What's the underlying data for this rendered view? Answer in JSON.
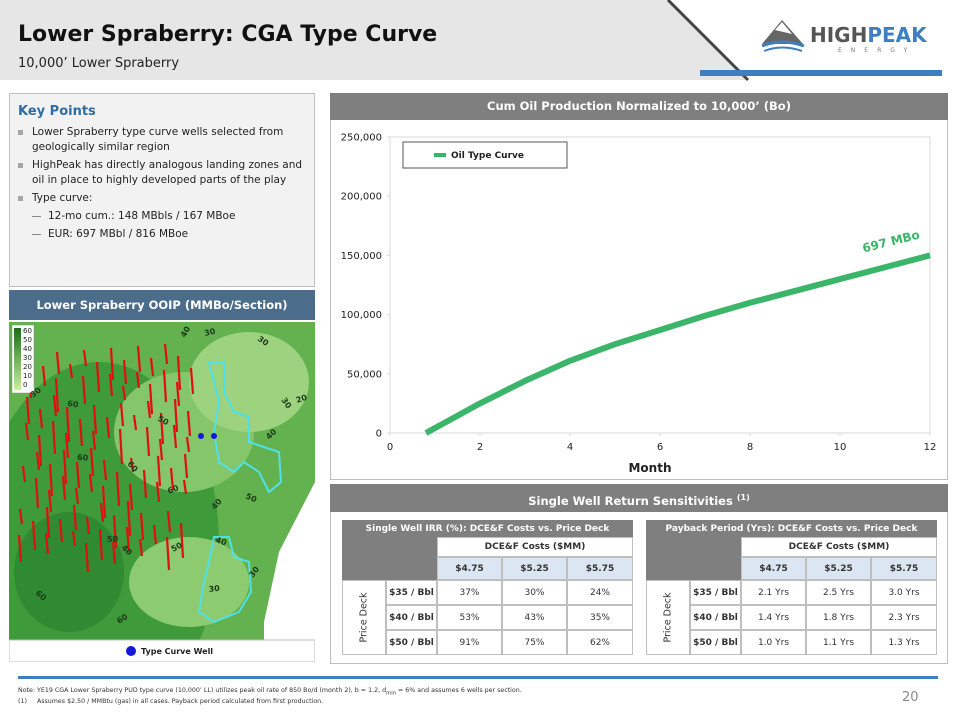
{
  "header": {
    "title": "Lower Spraberry: CGA Type Curve",
    "subtitle": "10,000’ Lower Spraberry"
  },
  "logo": {
    "high": "HIGH",
    "peak": "PEAK",
    "sub": "ENERGY"
  },
  "key_points": {
    "title": "Key Points",
    "bullets": [
      {
        "text": "Lower Spraberry type curve wells selected from geologically similar region",
        "level": 1
      },
      {
        "text": "HighPeak has directly analogous landing zones and oil in place to highly developed parts of the play",
        "level": 1
      },
      {
        "text": "Type curve:",
        "level": 1
      },
      {
        "text": "12-mo cum.: 148 MBbls / 167 MBoe",
        "level": 2
      },
      {
        "text": "EUR:  697 MBbl / 816 MBoe",
        "level": 2
      }
    ]
  },
  "map": {
    "title": "Lower Spraberry OOIP (MMBo/Section)",
    "scale_labels": [
      "60",
      "50",
      "40",
      "30",
      "20",
      "10",
      "0"
    ],
    "contour_labels": [
      "40",
      "30",
      "30",
      "30",
      "60",
      "30",
      "20",
      "50",
      "40",
      "60",
      "60",
      "60",
      "50",
      "40",
      "50",
      "40",
      "50",
      "40",
      "30",
      "30",
      "60",
      "60"
    ],
    "legend": "Type Curve Well"
  },
  "chart_data": {
    "type": "line",
    "title": "Cum Oil Production Normalized to 10,000’  (Bo)",
    "x_label": "Month",
    "x": [
      0.8,
      2,
      3,
      4,
      5,
      6,
      7,
      8,
      9,
      10,
      11,
      12
    ],
    "series": [
      {
        "name": "Oil Type Curve",
        "color": "#3bb56a",
        "values": [
          0,
          25000,
          44000,
          61000,
          75000,
          87000,
          99000,
          110000,
          120000,
          130000,
          140000,
          150000
        ]
      }
    ],
    "xlim": [
      0,
      12
    ],
    "xticks": [
      0,
      2,
      4,
      6,
      8,
      10,
      12
    ],
    "ylim": [
      0,
      250000
    ],
    "yticks": [
      0,
      {
        "value": 50000,
        "label": "50,000"
      },
      {
        "value": 100000,
        "label": "100,000"
      },
      {
        "value": 150000,
        "label": "150,000"
      },
      {
        "value": 200000,
        "label": "200,000"
      },
      {
        "value": 250000,
        "label": "250,000"
      }
    ],
    "grid": false,
    "annotation": "697 MBo",
    "legend": "upper left"
  },
  "sensitivities": {
    "title": "Single Well Return Sensitivities",
    "footnote_mark": "(1)",
    "tables": [
      {
        "title": "Single Well IRR (%): DCE&F Costs vs. Price Deck",
        "column_group": "DCE&F Costs ($MM)",
        "columns": [
          "$4.75",
          "$5.25",
          "$5.75"
        ],
        "row_group": "Price Deck",
        "rows": [
          {
            "label": "$35 / Bbl",
            "cells": [
              "37%",
              "30%",
              "24%"
            ]
          },
          {
            "label": "$40 / Bbl",
            "cells": [
              "53%",
              "43%",
              "35%"
            ]
          },
          {
            "label": "$50 / Bbl",
            "cells": [
              "91%",
              "75%",
              "62%"
            ]
          }
        ]
      },
      {
        "title": "Payback Period (Yrs): DCE&F Costs vs. Price Deck",
        "column_group": "DCE&F Costs ($MM)",
        "columns": [
          "$4.75",
          "$5.25",
          "$5.75"
        ],
        "row_group": "Price Deck",
        "rows": [
          {
            "label": "$35 / Bbl",
            "cells": [
              "2.1 Yrs",
              "2.5 Yrs",
              "3.0 Yrs"
            ]
          },
          {
            "label": "$40 / Bbl",
            "cells": [
              "1.4 Yrs",
              "1.8 Yrs",
              "2.3 Yrs"
            ]
          },
          {
            "label": "$50 / Bbl",
            "cells": [
              "1.0 Yrs",
              "1.1 Yrs",
              "1.3 Yrs"
            ]
          }
        ]
      }
    ]
  },
  "notes": {
    "note_a": "Note: YE19 CGA Lower Spraberry PUD type curve (10,000’ LL) utilizes peak oil rate of 850 Bo/d (month 2), b = 1.2, d",
    "note_sub": "min",
    "note_b": " = 6% and assumes 6 wells per section.",
    "fn_mark": "(1)",
    "fn_text": "Assumes $2.50 / MMBtu (gas) in all cases. Payback period calculated from first production."
  },
  "page_number": "20"
}
